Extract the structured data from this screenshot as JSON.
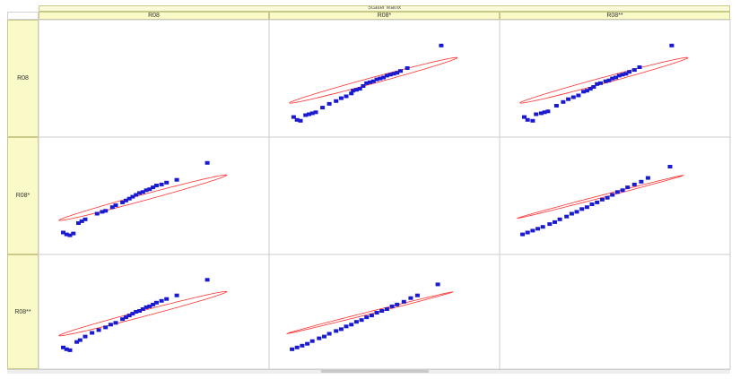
{
  "window": {
    "title": "Scatter Matrix"
  },
  "chart_data": {
    "type": "scatter",
    "title": "Scatter Matrix",
    "variables": [
      "R08",
      "R08*",
      "R08**"
    ],
    "ellipse_color": "#ff3030",
    "point_color": "#1a1ad0",
    "grid": false,
    "panels": [
      {
        "row": 0,
        "col": 1,
        "x_var": "R08*",
        "y_var": "R08",
        "ellipse": {
          "cx": 0.52,
          "cy": 0.47,
          "a": 0.55,
          "b": 0.03,
          "angle": 26
        },
        "points": [
          [
            0.05,
            0.08
          ],
          [
            0.07,
            0.05
          ],
          [
            0.09,
            0.04
          ],
          [
            0.12,
            0.1
          ],
          [
            0.14,
            0.11
          ],
          [
            0.16,
            0.12
          ],
          [
            0.18,
            0.13
          ],
          [
            0.22,
            0.18
          ],
          [
            0.26,
            0.22
          ],
          [
            0.3,
            0.25
          ],
          [
            0.33,
            0.28
          ],
          [
            0.36,
            0.3
          ],
          [
            0.39,
            0.33
          ],
          [
            0.4,
            0.36
          ],
          [
            0.42,
            0.37
          ],
          [
            0.44,
            0.38
          ],
          [
            0.46,
            0.41
          ],
          [
            0.48,
            0.44
          ],
          [
            0.5,
            0.45
          ],
          [
            0.52,
            0.46
          ],
          [
            0.54,
            0.48
          ],
          [
            0.56,
            0.49
          ],
          [
            0.58,
            0.5
          ],
          [
            0.6,
            0.52
          ],
          [
            0.62,
            0.53
          ],
          [
            0.64,
            0.54
          ],
          [
            0.66,
            0.55
          ],
          [
            0.68,
            0.57
          ],
          [
            0.72,
            0.6
          ],
          [
            0.92,
            0.84
          ]
        ]
      },
      {
        "row": 0,
        "col": 2,
        "x_var": "R08**",
        "y_var": "R08",
        "ellipse": {
          "cx": 0.52,
          "cy": 0.47,
          "a": 0.55,
          "b": 0.03,
          "angle": 26
        },
        "points": [
          [
            0.05,
            0.08
          ],
          [
            0.07,
            0.05
          ],
          [
            0.1,
            0.04
          ],
          [
            0.12,
            0.11
          ],
          [
            0.15,
            0.12
          ],
          [
            0.17,
            0.13
          ],
          [
            0.19,
            0.14
          ],
          [
            0.24,
            0.2
          ],
          [
            0.28,
            0.24
          ],
          [
            0.31,
            0.27
          ],
          [
            0.34,
            0.29
          ],
          [
            0.37,
            0.31
          ],
          [
            0.4,
            0.35
          ],
          [
            0.42,
            0.36
          ],
          [
            0.44,
            0.38
          ],
          [
            0.46,
            0.4
          ],
          [
            0.48,
            0.43
          ],
          [
            0.5,
            0.44
          ],
          [
            0.53,
            0.46
          ],
          [
            0.55,
            0.47
          ],
          [
            0.57,
            0.49
          ],
          [
            0.59,
            0.5
          ],
          [
            0.61,
            0.52
          ],
          [
            0.63,
            0.53
          ],
          [
            0.65,
            0.54
          ],
          [
            0.67,
            0.56
          ],
          [
            0.7,
            0.58
          ],
          [
            0.73,
            0.61
          ],
          [
            0.92,
            0.84
          ]
        ]
      },
      {
        "row": 1,
        "col": 0,
        "x_var": "R08",
        "y_var": "R08*",
        "ellipse": {
          "cx": 0.52,
          "cy": 0.47,
          "a": 0.55,
          "b": 0.03,
          "angle": 26
        },
        "points": [
          [
            0.05,
            0.1
          ],
          [
            0.07,
            0.08
          ],
          [
            0.09,
            0.07
          ],
          [
            0.11,
            0.09
          ],
          [
            0.14,
            0.2
          ],
          [
            0.16,
            0.22
          ],
          [
            0.18,
            0.24
          ],
          [
            0.25,
            0.3
          ],
          [
            0.28,
            0.32
          ],
          [
            0.3,
            0.33
          ],
          [
            0.34,
            0.37
          ],
          [
            0.36,
            0.39
          ],
          [
            0.4,
            0.42
          ],
          [
            0.42,
            0.44
          ],
          [
            0.44,
            0.46
          ],
          [
            0.46,
            0.48
          ],
          [
            0.48,
            0.5
          ],
          [
            0.5,
            0.52
          ],
          [
            0.52,
            0.53
          ],
          [
            0.54,
            0.55
          ],
          [
            0.56,
            0.56
          ],
          [
            0.58,
            0.58
          ],
          [
            0.6,
            0.6
          ],
          [
            0.63,
            0.61
          ],
          [
            0.66,
            0.63
          ],
          [
            0.72,
            0.66
          ],
          [
            0.9,
            0.84
          ]
        ]
      },
      {
        "row": 1,
        "col": 2,
        "x_var": "R08**",
        "y_var": "R08*",
        "ellipse": {
          "cx": 0.5,
          "cy": 0.48,
          "a": 0.54,
          "b": 0.012,
          "angle": 25
        },
        "points": [
          [
            0.04,
            0.08
          ],
          [
            0.07,
            0.1
          ],
          [
            0.1,
            0.12
          ],
          [
            0.13,
            0.14
          ],
          [
            0.16,
            0.16
          ],
          [
            0.2,
            0.19
          ],
          [
            0.23,
            0.21
          ],
          [
            0.26,
            0.24
          ],
          [
            0.3,
            0.27
          ],
          [
            0.33,
            0.3
          ],
          [
            0.36,
            0.32
          ],
          [
            0.39,
            0.35
          ],
          [
            0.42,
            0.37
          ],
          [
            0.45,
            0.4
          ],
          [
            0.48,
            0.42
          ],
          [
            0.51,
            0.45
          ],
          [
            0.54,
            0.47
          ],
          [
            0.57,
            0.5
          ],
          [
            0.6,
            0.53
          ],
          [
            0.63,
            0.55
          ],
          [
            0.66,
            0.58
          ],
          [
            0.7,
            0.61
          ],
          [
            0.74,
            0.64
          ],
          [
            0.78,
            0.68
          ],
          [
            0.91,
            0.8
          ]
        ]
      },
      {
        "row": 2,
        "col": 0,
        "x_var": "R08",
        "y_var": "R08**",
        "ellipse": {
          "cx": 0.52,
          "cy": 0.47,
          "a": 0.55,
          "b": 0.03,
          "angle": 26
        },
        "points": [
          [
            0.05,
            0.1
          ],
          [
            0.07,
            0.08
          ],
          [
            0.09,
            0.07
          ],
          [
            0.13,
            0.16
          ],
          [
            0.15,
            0.18
          ],
          [
            0.18,
            0.22
          ],
          [
            0.22,
            0.26
          ],
          [
            0.26,
            0.29
          ],
          [
            0.3,
            0.32
          ],
          [
            0.33,
            0.35
          ],
          [
            0.36,
            0.37
          ],
          [
            0.4,
            0.41
          ],
          [
            0.42,
            0.43
          ],
          [
            0.44,
            0.45
          ],
          [
            0.46,
            0.47
          ],
          [
            0.48,
            0.49
          ],
          [
            0.5,
            0.5
          ],
          [
            0.52,
            0.52
          ],
          [
            0.54,
            0.54
          ],
          [
            0.56,
            0.55
          ],
          [
            0.58,
            0.57
          ],
          [
            0.6,
            0.59
          ],
          [
            0.63,
            0.61
          ],
          [
            0.66,
            0.63
          ],
          [
            0.72,
            0.67
          ],
          [
            0.9,
            0.84
          ]
        ]
      },
      {
        "row": 2,
        "col": 1,
        "x_var": "R08*",
        "y_var": "R08**",
        "ellipse": {
          "cx": 0.5,
          "cy": 0.48,
          "a": 0.54,
          "b": 0.012,
          "angle": 25
        },
        "points": [
          [
            0.04,
            0.08
          ],
          [
            0.07,
            0.1
          ],
          [
            0.1,
            0.12
          ],
          [
            0.13,
            0.14
          ],
          [
            0.16,
            0.17
          ],
          [
            0.2,
            0.2
          ],
          [
            0.23,
            0.22
          ],
          [
            0.26,
            0.25
          ],
          [
            0.3,
            0.28
          ],
          [
            0.33,
            0.3
          ],
          [
            0.36,
            0.33
          ],
          [
            0.39,
            0.35
          ],
          [
            0.42,
            0.38
          ],
          [
            0.45,
            0.4
          ],
          [
            0.48,
            0.43
          ],
          [
            0.51,
            0.45
          ],
          [
            0.54,
            0.48
          ],
          [
            0.57,
            0.5
          ],
          [
            0.6,
            0.52
          ],
          [
            0.63,
            0.55
          ],
          [
            0.66,
            0.57
          ],
          [
            0.7,
            0.6
          ],
          [
            0.74,
            0.64
          ],
          [
            0.78,
            0.67
          ],
          [
            0.9,
            0.79
          ]
        ]
      }
    ]
  }
}
